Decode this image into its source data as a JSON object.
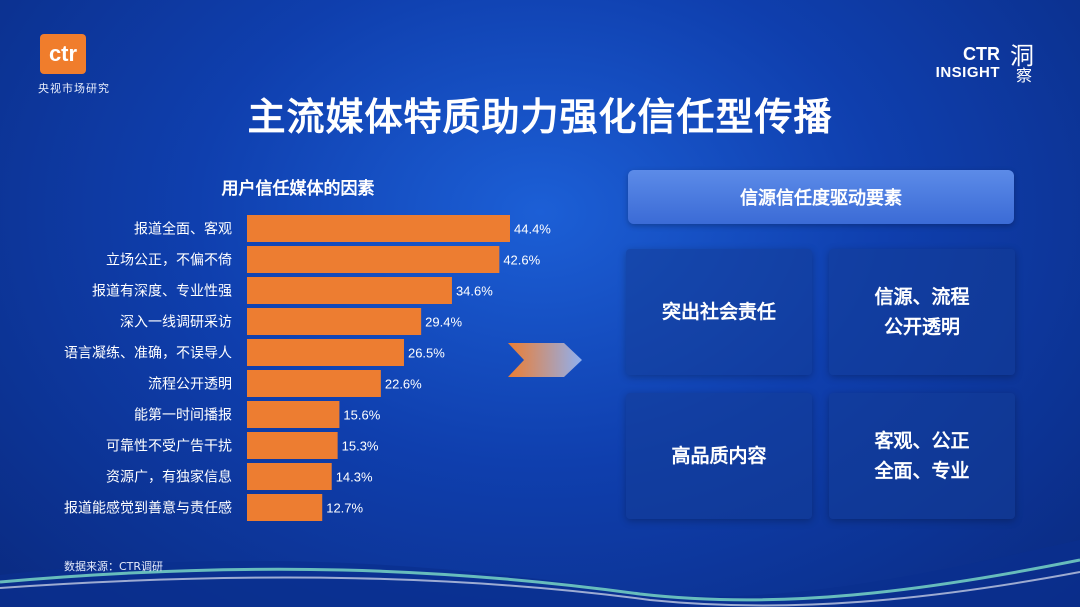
{
  "branding": {
    "ctr_logo_text": "ctr",
    "ctr_subtitle": "央视市场研究",
    "insight_ctr": "CTR",
    "insight_word": "INSIGHT",
    "insight_cn_1": "洞",
    "insight_cn_2": "察"
  },
  "page_title": "主流媒体特质助力强化信任型传播",
  "chart_data": {
    "type": "bar",
    "orientation": "horizontal",
    "title": "用户信任媒体的因素",
    "categories": [
      "报道全面、客观",
      "立场公正，不偏不倚",
      "报道有深度、专业性强",
      "深入一线调研采访",
      "语言凝练、准确，不误导人",
      "流程公开透明",
      "能第一时间播报",
      "可靠性不受广告干扰",
      "资源广，有独家信息",
      "报道能感觉到善意与责任感"
    ],
    "values": [
      44.4,
      42.6,
      34.6,
      29.4,
      26.5,
      22.6,
      15.6,
      15.3,
      14.3,
      12.7
    ],
    "value_labels": [
      "44.4%",
      "42.6%",
      "34.6%",
      "29.4%",
      "26.5%",
      "22.6%",
      "15.6%",
      "15.3%",
      "14.3%",
      "12.7%"
    ],
    "unit": "%",
    "bar_color": "#ed7d31",
    "grid": false,
    "legend": "none"
  },
  "drivers": {
    "header": "信源信任度驱动要素",
    "items": [
      {
        "line1": "突出社会责任",
        "line2": ""
      },
      {
        "line1": "信源、流程",
        "line2": "公开透明"
      },
      {
        "line1": "高品质内容",
        "line2": ""
      },
      {
        "line1": "客观、公正",
        "line2": "全面、专业"
      }
    ]
  },
  "source": "数据来源：CTR调研",
  "colors": {
    "background": "#0f3fae",
    "accent": "#ed7d31",
    "header_box": "#4a7de0"
  }
}
